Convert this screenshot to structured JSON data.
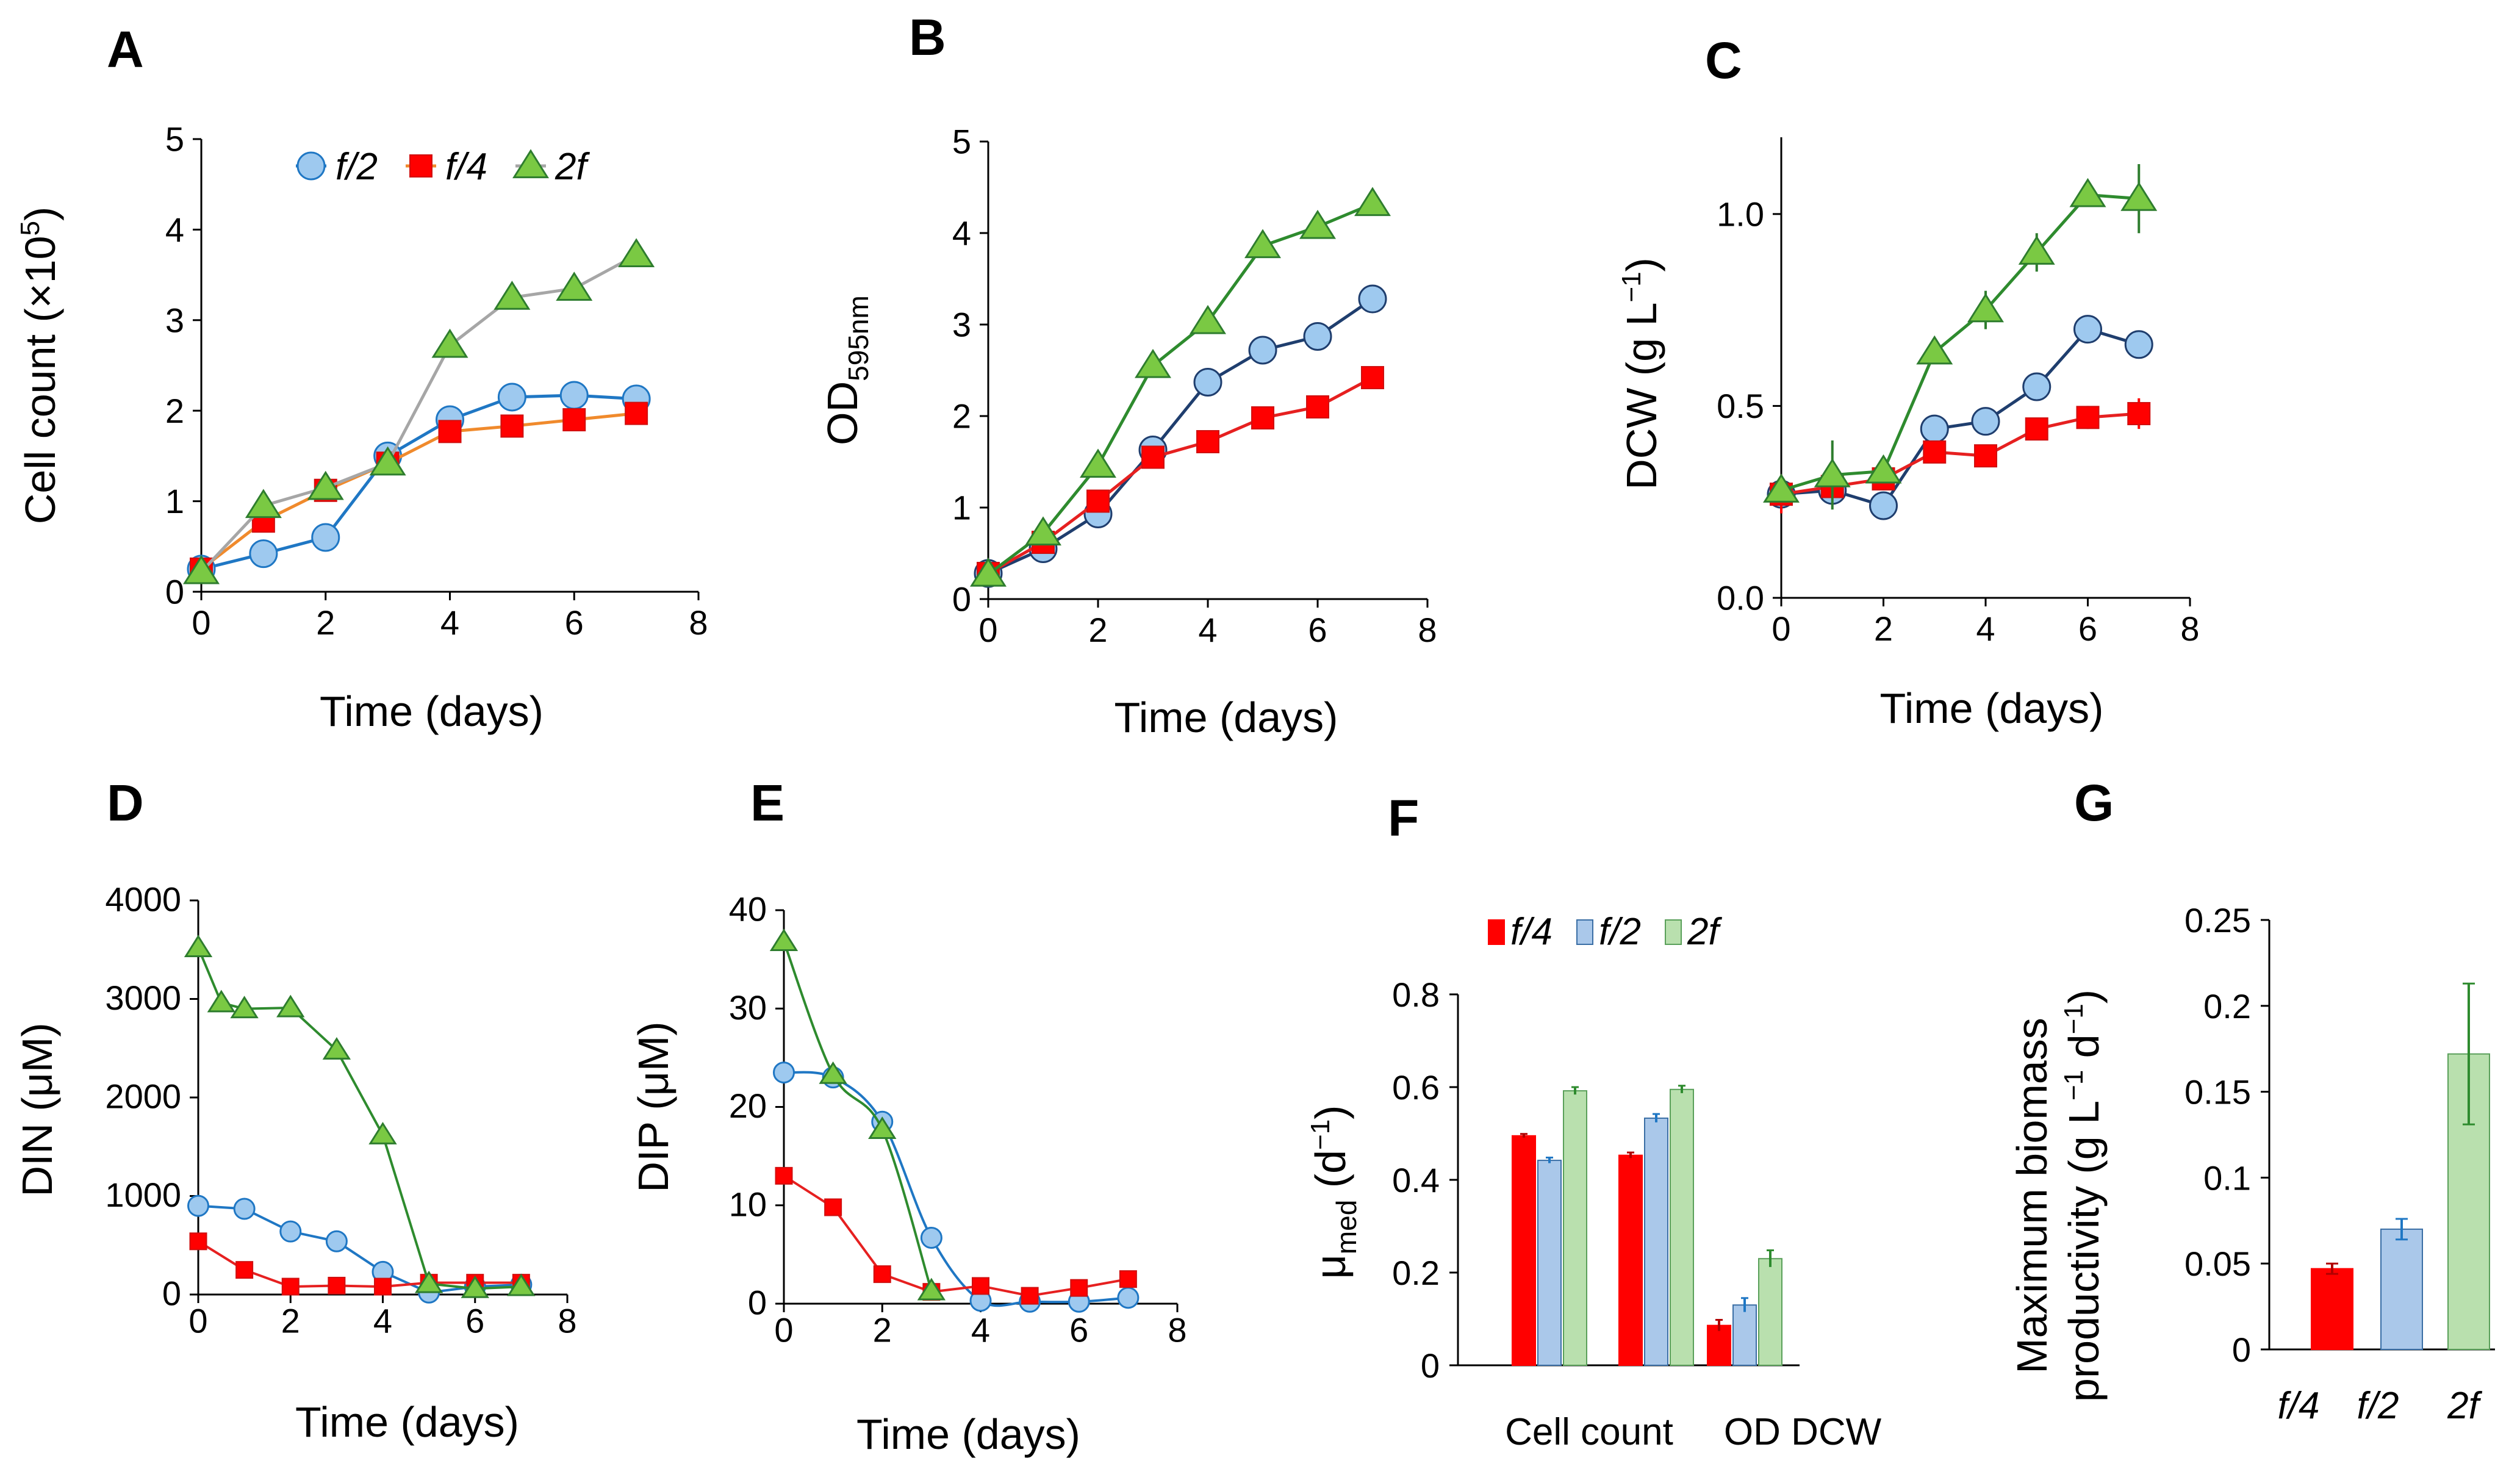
{
  "figure": {
    "panels": [
      "A",
      "B",
      "C",
      "D",
      "E",
      "F",
      "G"
    ]
  },
  "chart_data": [
    {
      "panel": "A",
      "type": "line",
      "title": "",
      "xlabel": "Time (days)",
      "ylabel": "Cell count (×10",
      "ylabel_sup": "5",
      "ylabel_end": ")",
      "xlim": [
        0,
        8
      ],
      "ylim": [
        0,
        5
      ],
      "xticks": [
        0,
        2,
        4,
        6,
        8
      ],
      "yticks": [
        0,
        1,
        2,
        3,
        4,
        5
      ],
      "legend": [
        "f/2",
        "f/4",
        "2f"
      ],
      "series": [
        {
          "name": "f/2",
          "marker": "circle",
          "color": "#1f77c4",
          "fill": "#9ec9ef",
          "x": [
            0,
            1,
            2,
            3,
            4,
            5,
            6,
            7
          ],
          "y": [
            0.25,
            0.42,
            0.6,
            1.5,
            1.9,
            2.15,
            2.17,
            2.13
          ]
        },
        {
          "name": "f/4",
          "marker": "square",
          "color": "#f08a2c",
          "fill": "#ff0000",
          "x": [
            0,
            1,
            2,
            3,
            4,
            5,
            6,
            7
          ],
          "y": [
            0.25,
            0.78,
            1.12,
            1.42,
            1.77,
            1.83,
            1.9,
            1.97
          ]
        },
        {
          "name": "2f",
          "marker": "triangle",
          "color": "#a6a6a6",
          "fill": "#7ac943",
          "x": [
            0,
            1,
            2,
            3,
            4,
            5,
            6,
            7
          ],
          "y": [
            0.22,
            0.95,
            1.15,
            1.42,
            2.72,
            3.25,
            3.35,
            3.72
          ],
          "err": [
            0,
            0,
            0,
            0,
            0.1,
            0,
            0,
            0.12
          ]
        }
      ]
    },
    {
      "panel": "B",
      "type": "line",
      "title": "",
      "xlabel": "Time (days)",
      "ylabel": "OD",
      "ylabel_sub": "595nm",
      "xlim": [
        0,
        8
      ],
      "ylim": [
        0,
        5
      ],
      "xticks": [
        0,
        2,
        4,
        6,
        8
      ],
      "yticks": [
        0,
        1,
        2,
        3,
        4,
        5
      ],
      "series": [
        {
          "name": "f/2",
          "marker": "circle",
          "color": "#1f3e6e",
          "fill": "#9ec9ef",
          "x": [
            0,
            1,
            2,
            3,
            4,
            5,
            6,
            7
          ],
          "y": [
            0.28,
            0.55,
            0.93,
            1.63,
            2.37,
            2.72,
            2.87,
            3.28
          ]
        },
        {
          "name": "f/4",
          "marker": "square",
          "color": "#e62020",
          "fill": "#ff0000",
          "x": [
            0,
            1,
            2,
            3,
            4,
            5,
            6,
            7
          ],
          "y": [
            0.28,
            0.62,
            1.07,
            1.55,
            1.72,
            1.98,
            2.1,
            2.42
          ]
        },
        {
          "name": "2f",
          "marker": "triangle",
          "color": "#2e8b2e",
          "fill": "#7ac943",
          "x": [
            0,
            1,
            2,
            3,
            4,
            5,
            6,
            7
          ],
          "y": [
            0.27,
            0.72,
            1.46,
            2.55,
            3.03,
            3.86,
            4.07,
            4.32
          ]
        }
      ]
    },
    {
      "panel": "C",
      "type": "line",
      "title": "",
      "xlabel": "Time (days)",
      "ylabel": "DCW (g L",
      "ylabel_sup": "−1",
      "ylabel_end": ")",
      "xlim": [
        0,
        8
      ],
      "ylim": [
        0,
        1.2
      ],
      "xticks": [
        0,
        2,
        4,
        6,
        8
      ],
      "yticks": [
        0.0,
        0.5,
        1.0
      ],
      "ytick_labels": [
        "0.0",
        "0.5",
        "1.0"
      ],
      "series": [
        {
          "name": "f/2",
          "marker": "circle",
          "color": "#1f3e6e",
          "fill": "#9ec9ef",
          "x": [
            0,
            1,
            2,
            3,
            4,
            5,
            6,
            7
          ],
          "y": [
            0.27,
            0.28,
            0.24,
            0.44,
            0.46,
            0.55,
            0.7,
            0.66
          ],
          "err": [
            0.02,
            0.02,
            0.02,
            0.02,
            0.02,
            0.03,
            0.02,
            0.02
          ]
        },
        {
          "name": "f/4",
          "marker": "square",
          "color": "#e62020",
          "fill": "#ff0000",
          "x": [
            0,
            1,
            2,
            3,
            4,
            5,
            6,
            7
          ],
          "y": [
            0.27,
            0.29,
            0.31,
            0.38,
            0.37,
            0.44,
            0.47,
            0.48
          ],
          "err": [
            0.05,
            0.03,
            0.03,
            0.02,
            0.02,
            0.02,
            0.03,
            0.04
          ]
        },
        {
          "name": "2f",
          "marker": "triangle",
          "color": "#2e8b2e",
          "fill": "#7ac943",
          "x": [
            0,
            1,
            2,
            3,
            4,
            5,
            6,
            7
          ],
          "y": [
            0.28,
            0.32,
            0.33,
            0.64,
            0.75,
            0.9,
            1.05,
            1.04
          ],
          "err": [
            0.02,
            0.09,
            0.03,
            0.02,
            0.05,
            0.05,
            0.02,
            0.09
          ]
        }
      ]
    },
    {
      "panel": "D",
      "type": "line",
      "title": "",
      "xlabel": "Time (days)",
      "ylabel": "DIN (μM)",
      "xlim": [
        0,
        8
      ],
      "ylim": [
        0,
        4000
      ],
      "xticks": [
        0,
        2,
        4,
        6,
        8
      ],
      "yticks": [
        0,
        1000,
        2000,
        3000,
        4000
      ],
      "series": [
        {
          "name": "f/2",
          "marker": "circle",
          "color": "#1f77c4",
          "fill": "#9ec9ef",
          "x": [
            0,
            1,
            2,
            3,
            4,
            5,
            6,
            7
          ],
          "y": [
            900,
            870,
            640,
            540,
            230,
            20,
            80,
            100
          ]
        },
        {
          "name": "f/4",
          "marker": "square",
          "color": "#e62020",
          "fill": "#ff0000",
          "x": [
            0,
            1,
            2,
            3,
            4,
            5,
            6,
            7
          ],
          "y": [
            540,
            250,
            80,
            90,
            80,
            120,
            120,
            120
          ]
        },
        {
          "name": "2f",
          "marker": "triangle",
          "color": "#2e8b2e",
          "fill": "#7ac943",
          "x": [
            0,
            0.5,
            1,
            2,
            3,
            4,
            5,
            6,
            7
          ],
          "y": [
            3520,
            2960,
            2900,
            2910,
            2480,
            1620,
            110,
            60,
            80
          ]
        }
      ]
    },
    {
      "panel": "E",
      "type": "line",
      "title": "",
      "xlabel": "Time (days)",
      "ylabel": "DIP (μM)",
      "xlim": [
        0,
        8
      ],
      "ylim": [
        0,
        40
      ],
      "xticks": [
        0,
        2,
        4,
        6,
        8
      ],
      "yticks": [
        0,
        10,
        20,
        30,
        40
      ],
      "series": [
        {
          "name": "f/2",
          "marker": "circle",
          "color": "#1f77c4",
          "fill": "#9ec9ef",
          "x": [
            0,
            1,
            2,
            3,
            4,
            5,
            6,
            7
          ],
          "y": [
            23.5,
            23.0,
            18.5,
            6.7,
            0.3,
            0.2,
            0.2,
            0.6
          ]
        },
        {
          "name": "f/4",
          "marker": "square",
          "color": "#e62020",
          "fill": "#ff0000",
          "x": [
            0,
            1,
            2,
            3,
            4,
            5,
            6,
            7
          ],
          "y": [
            13.0,
            9.8,
            3.0,
            1.2,
            1.8,
            0.8,
            1.6,
            2.5
          ]
        },
        {
          "name": "2f",
          "marker": "triangle",
          "color": "#2e8b2e",
          "fill": "#7ac943",
          "x": [
            0,
            1,
            2,
            3
          ],
          "y": [
            36.8,
            23.3,
            17.7,
            1.3
          ]
        }
      ]
    },
    {
      "panel": "F",
      "type": "bar",
      "title": "",
      "xlabel": "",
      "ylabel": "μ",
      "ylabel_sub": "med",
      "ylabel_end": " (d",
      "ylabel_sup": "−1",
      "ylabel_close": ")",
      "ylim": [
        0,
        0.8
      ],
      "yticks": [
        0,
        0.2,
        0.4,
        0.6,
        0.8
      ],
      "ytick_labels": [
        "0",
        "0.2",
        "0.4",
        "0.6",
        "0.8"
      ],
      "categories": [
        "Cell count",
        "OD",
        "DCW"
      ],
      "category_labels": [
        "Cell count",
        "OD DCW"
      ],
      "legend": [
        "f/4",
        "f/2",
        "2f"
      ],
      "series": [
        {
          "name": "f/4",
          "color": "#ff0000",
          "edge": "#ff0000",
          "err_color": "#b00000",
          "values": [
            0.495,
            0.453,
            0.086
          ],
          "err": [
            0.004,
            0.006,
            0.012
          ]
        },
        {
          "name": "f/2",
          "color": "#aac8ea",
          "edge": "#3a6ea5",
          "err_color": "#1f77c4",
          "values": [
            0.442,
            0.533,
            0.13
          ],
          "err": [
            0.006,
            0.009,
            0.015
          ]
        },
        {
          "name": "2f",
          "color": "#b9e0ae",
          "edge": "#5aa05a",
          "err_color": "#2e8b2e",
          "values": [
            0.592,
            0.595,
            0.23
          ],
          "err": [
            0.008,
            0.008,
            0.018
          ]
        }
      ]
    },
    {
      "panel": "G",
      "type": "bar",
      "title": "",
      "xlabel": "",
      "ylabel_line1": "Maximum biomass",
      "ylabel_line2": "productivity (g L",
      "ylabel_sup1": "−1",
      "ylabel_mid": " d",
      "ylabel_sup2": "−1",
      "ylabel_end": ")",
      "ylim": [
        0,
        0.25
      ],
      "yticks": [
        0,
        0.05,
        0.1,
        0.15,
        0.2,
        0.25
      ],
      "ytick_labels": [
        "0",
        "0.05",
        "0.1",
        "0.15",
        "0.2",
        "0.25"
      ],
      "categories": [
        "f/4",
        "f/2",
        "2f"
      ],
      "values": [
        0.047,
        0.07,
        0.172
      ],
      "err": [
        0.003,
        0.006,
        0.041
      ],
      "colors": [
        "#ff0000",
        "#aac8ea",
        "#b9e0ae"
      ],
      "edges": [
        "#ff0000",
        "#3a6ea5",
        "#5aa05a"
      ],
      "err_colors": [
        "#b00000",
        "#1f77c4",
        "#2e8b2e"
      ]
    }
  ]
}
